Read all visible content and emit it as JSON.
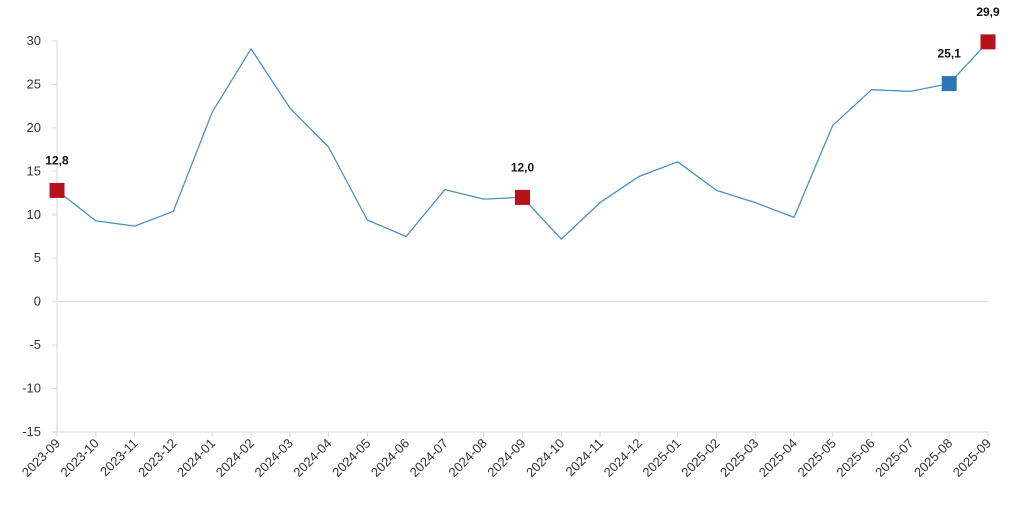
{
  "chart_data": {
    "type": "line",
    "title": "",
    "xlabel": "",
    "ylabel": "",
    "ylim": [
      -15,
      30
    ],
    "yticks": [
      30,
      25,
      20,
      15,
      10,
      5,
      0,
      -5,
      -10,
      -15
    ],
    "ytick_labels": [
      "30",
      "25",
      "20",
      "15",
      "10",
      "5",
      "0",
      "-5",
      "-10",
      "-15"
    ],
    "grid": false,
    "legend": "none",
    "categories": [
      "2023-09",
      "2023-10",
      "2023-11",
      "2023-12",
      "2024-01",
      "2024-02",
      "2024-03",
      "2024-04",
      "2024-05",
      "2024-06",
      "2024-07",
      "2024-08",
      "2024-09",
      "2024-10",
      "2024-11",
      "2024-12",
      "2025-01",
      "2025-02",
      "2025-03",
      "2025-04",
      "2025-05",
      "2025-06",
      "2025-07",
      "2025-08",
      "2025-09"
    ],
    "series": [
      {
        "color": "#4a90c4",
        "values": [
          12.8,
          9.3,
          8.7,
          10.4,
          21.8,
          29.1,
          22.3,
          17.8,
          9.4,
          7.5,
          12.9,
          11.8,
          12.0,
          7.2,
          11.4,
          14.4,
          16.1,
          12.8,
          11.4,
          9.7,
          20.3,
          24.4,
          24.2,
          25.1,
          29.9
        ]
      }
    ],
    "markers": [
      {
        "index": 0,
        "label": "12,8",
        "color": "#b5121b",
        "shape": "square"
      },
      {
        "index": 12,
        "label": "12,0",
        "color": "#b5121b",
        "shape": "square"
      },
      {
        "index": 23,
        "label": "25,1",
        "color": "#2e75b6",
        "shape": "square"
      },
      {
        "index": 24,
        "label": "29,9",
        "color": "#b5121b",
        "shape": "square"
      }
    ],
    "axis_color": "#d9d9d9"
  }
}
